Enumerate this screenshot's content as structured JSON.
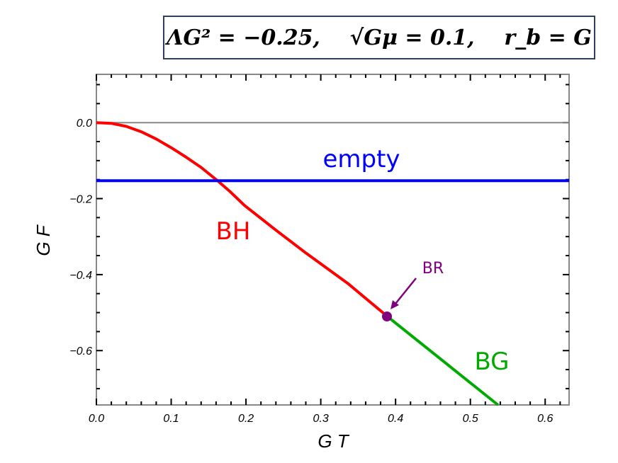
{
  "parameters_box": {
    "text": "ΛG² = −0.25,    √Gμ = 0.1,    r_b = G",
    "parts": [
      "ΛG² = −0.25,",
      "√Gμ = 0.1,",
      "r_b = G"
    ]
  },
  "chart_data": {
    "type": "line",
    "title": "ΛG² = −0.25,  √Gμ = 0.1,  r_b = G",
    "xlabel": "G T",
    "ylabel": "G F",
    "xlim": [
      0.0,
      0.632
    ],
    "ylim": [
      -0.743,
      0.127
    ],
    "xticks": [
      0.0,
      0.1,
      0.2,
      0.3,
      0.4,
      0.5,
      0.6
    ],
    "xtick_labels": [
      "0.0",
      "0.1",
      "0.2",
      "0.3",
      "0.4",
      "0.5",
      "0.6"
    ],
    "yticks": [
      0.0,
      -0.2,
      -0.4,
      -0.6
    ],
    "ytick_labels": [
      "0.0",
      "−0.2",
      "−0.4",
      "−0.6"
    ],
    "grid": false,
    "legend": "none (inline labels)",
    "series": [
      {
        "name": "empty",
        "color": "#0000ff",
        "x": [
          0.0,
          0.632
        ],
        "y": [
          -0.153,
          -0.153
        ]
      },
      {
        "name": "BH",
        "color": "#ff0000",
        "x": [
          0.0,
          0.02,
          0.04,
          0.06,
          0.08,
          0.1,
          0.12,
          0.14,
          0.162,
          0.18,
          0.198,
          0.24,
          0.28,
          0.336,
          0.389
        ],
        "y": [
          0.0,
          -0.002,
          -0.01,
          -0.024,
          -0.043,
          -0.066,
          -0.091,
          -0.118,
          -0.153,
          -0.184,
          -0.218,
          -0.283,
          -0.343,
          -0.423,
          -0.51
        ]
      },
      {
        "name": "BG",
        "color": "#00aa00",
        "x": [
          0.389,
          0.537
        ],
        "y": [
          -0.51,
          -0.743
        ]
      },
      {
        "name": "zero-line",
        "color": "#888888",
        "x": [
          0.0,
          0.632
        ],
        "y": [
          0.0,
          0.0
        ]
      }
    ],
    "annotations": [
      {
        "text": "empty",
        "color": "#0000ff",
        "x": 0.33,
        "y": -0.1
      },
      {
        "text": "BH",
        "color": "#ff0000",
        "x": 0.195,
        "y": -0.29
      },
      {
        "text": "BG",
        "color": "#00aa00",
        "x": 0.53,
        "y": -0.63
      },
      {
        "text": "BR",
        "color": "#800080",
        "x": 0.44,
        "y": -0.37,
        "marker": {
          "x": 0.389,
          "y": -0.51
        },
        "arrow": true
      }
    ]
  },
  "labels": {
    "empty": "empty",
    "bh": "BH",
    "bg": "BG",
    "br": "BR",
    "xlabel": "G T",
    "ylabel": "G F"
  }
}
